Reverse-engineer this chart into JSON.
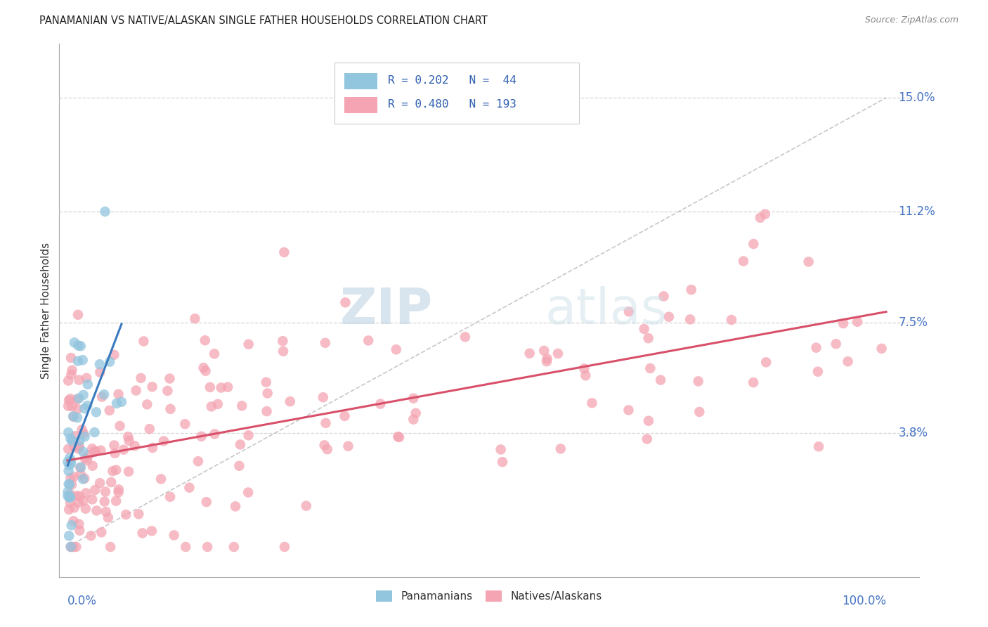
{
  "title": "PANAMANIAN VS NATIVE/ALASKAN SINGLE FATHER HOUSEHOLDS CORRELATION CHART",
  "source": "Source: ZipAtlas.com",
  "ylabel": "Single Father Households",
  "ytick_labels": [
    "3.8%",
    "7.5%",
    "11.2%",
    "15.0%"
  ],
  "ytick_values": [
    0.038,
    0.075,
    0.112,
    0.15
  ],
  "color_blue": "#92c5de",
  "color_blue_line": "#3a7abf",
  "color_pink": "#f4a4b2",
  "color_pink_line": "#d9506a",
  "color_dashed": "#b0b0b0",
  "watermark_zip": "ZIP",
  "watermark_atlas": "atlas",
  "legend_text1": "R = 0.202   N =  44",
  "legend_text2": "R = 0.480   N = 193"
}
